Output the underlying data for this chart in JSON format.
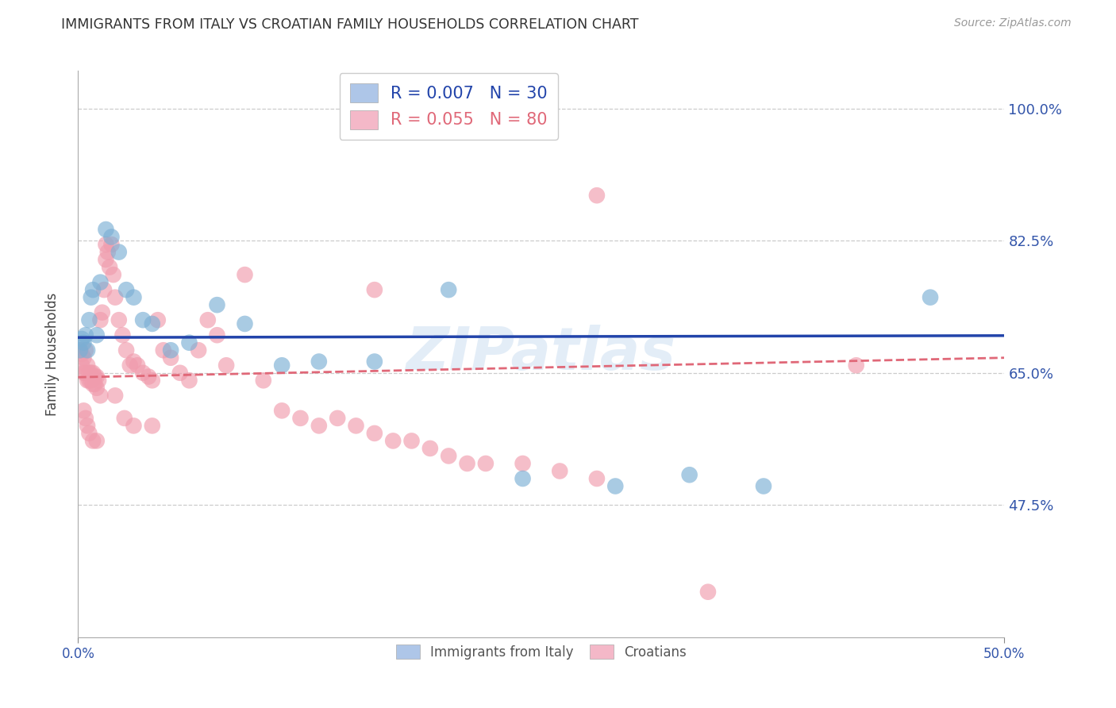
{
  "title": "IMMIGRANTS FROM ITALY VS CROATIAN FAMILY HOUSEHOLDS CORRELATION CHART",
  "source": "Source: ZipAtlas.com",
  "ylabel": "Family Households",
  "yticks": [
    0.475,
    0.65,
    0.825,
    1.0
  ],
  "ytick_labels": [
    "47.5%",
    "65.0%",
    "82.5%",
    "100.0%"
  ],
  "xmin": 0.0,
  "xmax": 0.5,
  "ymin": 0.3,
  "ymax": 1.05,
  "legend_italy_label": "R = 0.007   N = 30",
  "legend_croatian_label": "R = 0.055   N = 80",
  "legend_italy_color": "#aec6e8",
  "legend_croatian_color": "#f4b8c8",
  "italy_color": "#7bafd4",
  "croatian_color": "#f09cad",
  "italy_line_color": "#2244aa",
  "croatian_line_color": "#e06878",
  "watermark": "ZIPatlas",
  "italy_x": [
    0.001,
    0.002,
    0.003,
    0.004,
    0.005,
    0.006,
    0.007,
    0.008,
    0.01,
    0.012,
    0.015,
    0.018,
    0.022,
    0.026,
    0.03,
    0.035,
    0.04,
    0.05,
    0.06,
    0.075,
    0.09,
    0.11,
    0.13,
    0.16,
    0.2,
    0.24,
    0.29,
    0.33,
    0.37,
    0.46
  ],
  "italy_y": [
    0.68,
    0.695,
    0.69,
    0.7,
    0.68,
    0.72,
    0.75,
    0.76,
    0.7,
    0.77,
    0.84,
    0.83,
    0.81,
    0.76,
    0.75,
    0.72,
    0.715,
    0.68,
    0.69,
    0.74,
    0.715,
    0.66,
    0.665,
    0.665,
    0.76,
    0.51,
    0.5,
    0.515,
    0.5,
    0.75
  ],
  "croatian_x": [
    0.001,
    0.002,
    0.002,
    0.003,
    0.003,
    0.004,
    0.004,
    0.005,
    0.005,
    0.006,
    0.006,
    0.007,
    0.007,
    0.008,
    0.008,
    0.009,
    0.009,
    0.01,
    0.01,
    0.011,
    0.012,
    0.013,
    0.014,
    0.015,
    0.016,
    0.017,
    0.018,
    0.019,
    0.02,
    0.022,
    0.024,
    0.026,
    0.028,
    0.03,
    0.032,
    0.035,
    0.038,
    0.04,
    0.043,
    0.046,
    0.05,
    0.055,
    0.06,
    0.065,
    0.07,
    0.075,
    0.08,
    0.09,
    0.1,
    0.11,
    0.12,
    0.13,
    0.14,
    0.15,
    0.16,
    0.17,
    0.18,
    0.19,
    0.2,
    0.21,
    0.22,
    0.24,
    0.26,
    0.28,
    0.003,
    0.004,
    0.005,
    0.006,
    0.008,
    0.01,
    0.012,
    0.015,
    0.02,
    0.025,
    0.03,
    0.04,
    0.16,
    0.34,
    0.42,
    0.28
  ],
  "croatian_y": [
    0.68,
    0.675,
    0.66,
    0.67,
    0.65,
    0.68,
    0.65,
    0.66,
    0.64,
    0.65,
    0.64,
    0.65,
    0.64,
    0.65,
    0.635,
    0.645,
    0.635,
    0.645,
    0.63,
    0.64,
    0.72,
    0.73,
    0.76,
    0.8,
    0.81,
    0.79,
    0.82,
    0.78,
    0.75,
    0.72,
    0.7,
    0.68,
    0.66,
    0.665,
    0.66,
    0.65,
    0.645,
    0.64,
    0.72,
    0.68,
    0.67,
    0.65,
    0.64,
    0.68,
    0.72,
    0.7,
    0.66,
    0.78,
    0.64,
    0.6,
    0.59,
    0.58,
    0.59,
    0.58,
    0.57,
    0.56,
    0.56,
    0.55,
    0.54,
    0.53,
    0.53,
    0.53,
    0.52,
    0.51,
    0.6,
    0.59,
    0.58,
    0.57,
    0.56,
    0.56,
    0.62,
    0.82,
    0.62,
    0.59,
    0.58,
    0.58,
    0.76,
    0.36,
    0.66,
    0.885
  ]
}
